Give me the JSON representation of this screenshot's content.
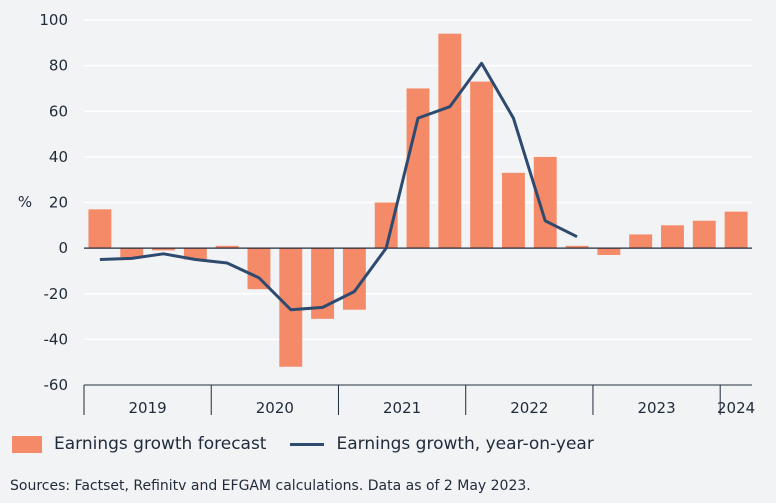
{
  "chart_data": {
    "type": "bar+line",
    "ylabel": "%",
    "ylim": [
      -60,
      100
    ],
    "yticks": [
      -60,
      -40,
      -20,
      0,
      20,
      40,
      60,
      80,
      100
    ],
    "periods": [
      "2019 Q1",
      "2019 Q2",
      "2019 Q3",
      "2019 Q4",
      "2020 Q1",
      "2020 Q2",
      "2020 Q3",
      "2020 Q4",
      "2021 Q1",
      "2021 Q2",
      "2021 Q3",
      "2021 Q4",
      "2022 Q1",
      "2022 Q2",
      "2022 Q3",
      "2022 Q4",
      "2023 Q1",
      "2023 Q2",
      "2023 Q3",
      "2023 Q4",
      "2024 Q1"
    ],
    "year_labels": [
      {
        "label": "2019",
        "center_index": 1.5
      },
      {
        "label": "2020",
        "center_index": 5.5
      },
      {
        "label": "2021",
        "center_index": 9.5
      },
      {
        "label": "2022",
        "center_index": 13.5
      },
      {
        "label": "2023",
        "center_index": 17.5
      },
      {
        "label": "2024",
        "center_index": 20
      }
    ],
    "series": [
      {
        "name": "Earnings growth forecast",
        "type": "bar",
        "color": "#f58a69",
        "values": [
          17,
          -4,
          -1,
          -5,
          1,
          -18,
          -52,
          -31,
          -27,
          20,
          70,
          94,
          73,
          33,
          40,
          1,
          -3,
          6,
          10,
          12,
          16
        ]
      },
      {
        "name": "Earnings growth, year-on-year",
        "type": "line",
        "color": "#2e4a6f",
        "values": [
          -5,
          -4.5,
          -2.5,
          -5,
          -6.5,
          -13,
          -27,
          -26,
          -19,
          0,
          57,
          62,
          81,
          57,
          12,
          5,
          null,
          null,
          null,
          null,
          null
        ]
      }
    ]
  },
  "legend": {
    "bar_label": "Earnings growth forecast",
    "line_label": "Earnings growth, year-on-year"
  },
  "source": "Sources: Factset, Refinitv and EFGAM calculations. Data as of 2 May 2023."
}
